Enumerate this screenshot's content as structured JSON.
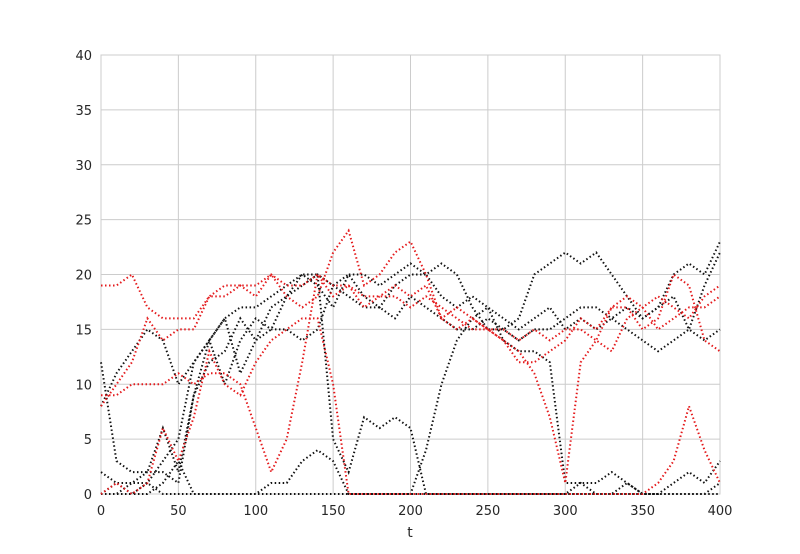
{
  "chart_data": {
    "type": "line",
    "title": "",
    "xlabel": "t",
    "ylabel": "",
    "xlim": [
      0,
      400
    ],
    "ylim": [
      0,
      40
    ],
    "xticks": [
      0,
      50,
      100,
      150,
      200,
      250,
      300,
      350,
      400
    ],
    "yticks": [
      0,
      5,
      10,
      15,
      20,
      25,
      30,
      35,
      40
    ],
    "grid": true,
    "line_style": "dotted",
    "colors": {
      "black_series": "#111111",
      "red_series": "#e41a1c",
      "grid": "#cccccc",
      "axis_frame": "#cccccc"
    },
    "series": [
      {
        "color": "#111111",
        "x": [
          0,
          10,
          20,
          30,
          40,
          50,
          60,
          70,
          80,
          90,
          100,
          110,
          120,
          130,
          140,
          150,
          160,
          170,
          180,
          190,
          200,
          210,
          220,
          230,
          240,
          250,
          260,
          270,
          280,
          290,
          300,
          310,
          320,
          330,
          340,
          350,
          360,
          370,
          380,
          390,
          400
        ],
        "y": [
          12,
          3,
          2,
          2,
          6,
          2,
          9,
          14,
          16,
          11,
          14,
          15,
          18,
          20,
          19,
          17,
          20,
          20,
          19,
          20,
          21,
          20,
          18,
          17,
          18,
          17,
          16,
          15,
          16,
          17,
          15,
          16,
          15,
          16,
          17,
          16,
          17,
          18,
          15,
          19,
          22
        ]
      },
      {
        "color": "#111111",
        "x": [
          0,
          10,
          20,
          30,
          40,
          50,
          60,
          70,
          80,
          90,
          100,
          110,
          120,
          130,
          140,
          150,
          160,
          170,
          180,
          190,
          200,
          210,
          220,
          230,
          240,
          250,
          260,
          270,
          280,
          290,
          300,
          310,
          320,
          330,
          340,
          350,
          360,
          370,
          380,
          390,
          400
        ],
        "y": [
          2,
          1,
          1,
          2,
          2,
          1,
          9,
          12,
          13,
          16,
          14,
          17,
          18,
          19,
          20,
          19,
          20,
          18,
          17,
          19,
          20,
          20,
          21,
          20,
          17,
          15,
          15,
          16,
          20,
          21,
          22,
          21,
          22,
          20,
          18,
          16,
          17,
          20,
          21,
          20,
          23
        ]
      },
      {
        "color": "#111111",
        "x": [
          0,
          10,
          20,
          30,
          40,
          50,
          60,
          70,
          80,
          90,
          100,
          110,
          120,
          130,
          140,
          150,
          160,
          170,
          180,
          190,
          200,
          210,
          220,
          230,
          240,
          250,
          260,
          270,
          280,
          290,
          300,
          310,
          320,
          330,
          340,
          350,
          360,
          370,
          380,
          390,
          400
        ],
        "y": [
          8,
          11,
          13,
          15,
          14,
          10,
          12,
          14,
          10,
          14,
          16,
          15,
          15,
          14,
          15,
          19,
          18,
          17,
          17,
          16,
          18,
          17,
          16,
          15,
          15,
          16,
          15,
          14,
          15,
          15,
          16,
          17,
          17,
          16,
          15,
          14,
          13,
          14,
          15,
          14,
          15
        ]
      },
      {
        "color": "#111111",
        "x": [
          0,
          10,
          20,
          30,
          40,
          50,
          60,
          70,
          80,
          90,
          100,
          110,
          120,
          130,
          140,
          150,
          160,
          170,
          180,
          190,
          200,
          210,
          220,
          230,
          240,
          250,
          260,
          270,
          280,
          290,
          300,
          310,
          320,
          330,
          340,
          350,
          360,
          370,
          380,
          390,
          400
        ],
        "y": [
          0,
          0,
          0,
          1,
          3,
          5,
          12,
          14,
          16,
          17,
          17,
          18,
          19,
          20,
          20,
          5,
          2,
          7,
          6,
          7,
          6,
          0,
          0,
          0,
          0,
          0,
          0,
          0,
          0,
          0,
          0,
          0,
          0,
          0,
          0,
          0,
          0,
          0,
          0,
          0,
          1
        ]
      },
      {
        "color": "#111111",
        "x": [
          0,
          10,
          20,
          30,
          40,
          50,
          60,
          70,
          80,
          90,
          100,
          110,
          120,
          130,
          140,
          150,
          160,
          170,
          180,
          190,
          200,
          210,
          220,
          230,
          240,
          250,
          260,
          270,
          280,
          290,
          300,
          310,
          320,
          330,
          340,
          350,
          360,
          370,
          380,
          390,
          400
        ],
        "y": [
          0,
          1,
          0,
          0,
          1,
          3,
          0,
          0,
          0,
          0,
          0,
          1,
          1,
          3,
          4,
          3,
          0,
          0,
          0,
          0,
          0,
          0,
          0,
          0,
          0,
          0,
          0,
          0,
          0,
          0,
          0,
          1,
          0,
          0,
          1,
          0,
          0,
          1,
          2,
          1,
          3
        ]
      },
      {
        "color": "#111111",
        "x": [
          0,
          10,
          20,
          30,
          40,
          50,
          60,
          70,
          80,
          90,
          100,
          110,
          120,
          130,
          140,
          150,
          160,
          170,
          180,
          190,
          200,
          210,
          220,
          230,
          240,
          250,
          260,
          270,
          280,
          290,
          300,
          310,
          320,
          330,
          340,
          350,
          360,
          370,
          380,
          390,
          400
        ],
        "y": [
          0,
          0,
          1,
          1,
          0,
          0,
          0,
          0,
          0,
          0,
          0,
          0,
          0,
          0,
          0,
          0,
          0,
          0,
          0,
          0,
          0,
          4,
          10,
          14,
          16,
          17,
          14,
          13,
          13,
          12,
          1,
          1,
          1,
          2,
          1,
          0,
          0,
          0,
          0,
          0,
          0
        ]
      },
      {
        "color": "#e41a1c",
        "x": [
          0,
          10,
          20,
          30,
          40,
          50,
          60,
          70,
          80,
          90,
          100,
          110,
          120,
          130,
          140,
          150,
          160,
          170,
          180,
          190,
          200,
          210,
          220,
          230,
          240,
          250,
          260,
          270,
          280,
          290,
          300,
          310,
          320,
          330,
          340,
          350,
          360,
          370,
          380,
          390,
          400
        ],
        "y": [
          19,
          19,
          20,
          17,
          16,
          16,
          16,
          18,
          19,
          19,
          19,
          20,
          19,
          19,
          20,
          19,
          19,
          18,
          18,
          18,
          17,
          18,
          17,
          16,
          15,
          15,
          15,
          14,
          15,
          14,
          15,
          15,
          14,
          13,
          16,
          17,
          18,
          17,
          16,
          18,
          19
        ]
      },
      {
        "color": "#e41a1c",
        "x": [
          0,
          10,
          20,
          30,
          40,
          50,
          60,
          70,
          80,
          90,
          100,
          110,
          120,
          130,
          140,
          150,
          160,
          170,
          180,
          190,
          200,
          210,
          220,
          230,
          240,
          250,
          260,
          270,
          280,
          290,
          300,
          310,
          320,
          330,
          340,
          350,
          360,
          370,
          380,
          390,
          400
        ],
        "y": [
          8,
          10,
          12,
          16,
          14,
          15,
          15,
          18,
          18,
          19,
          18,
          20,
          18,
          17,
          18,
          22,
          24,
          19,
          20,
          22,
          23,
          20,
          16,
          17,
          16,
          15,
          14,
          12,
          12,
          13,
          14,
          16,
          15,
          17,
          18,
          17,
          15,
          16,
          17,
          17,
          18
        ]
      },
      {
        "color": "#e41a1c",
        "x": [
          0,
          10,
          20,
          30,
          40,
          50,
          60,
          70,
          80,
          90,
          100,
          110,
          120,
          130,
          140,
          150,
          160,
          170,
          180,
          190,
          200,
          210,
          220,
          230,
          240,
          250,
          260,
          270,
          280,
          290,
          300,
          310,
          320,
          330,
          340,
          350,
          360,
          370,
          380,
          390,
          400
        ],
        "y": [
          9,
          9,
          10,
          10,
          10,
          11,
          10,
          11,
          11,
          10,
          6,
          2,
          5,
          12,
          20,
          18,
          19,
          17,
          18,
          19,
          18,
          19,
          16,
          15,
          16,
          15,
          14,
          13,
          11,
          7,
          1,
          12,
          14,
          17,
          17,
          15,
          16,
          20,
          19,
          14,
          13
        ]
      },
      {
        "color": "#e41a1c",
        "x": [
          0,
          10,
          20,
          30,
          40,
          50,
          60,
          70,
          80,
          90,
          100,
          110,
          120,
          130,
          140,
          150,
          160,
          170,
          180,
          190,
          200,
          210,
          220,
          230,
          240,
          250,
          260,
          270,
          280,
          290,
          300,
          310,
          320,
          330,
          340,
          350,
          360,
          370,
          380,
          390,
          400
        ],
        "y": [
          0,
          1,
          0,
          1,
          6,
          3,
          7,
          13,
          10,
          9,
          12,
          14,
          15,
          16,
          16,
          10,
          0,
          0,
          0,
          0,
          0,
          0,
          0,
          0,
          0,
          0,
          0,
          0,
          0,
          0,
          0,
          0,
          0,
          0,
          0,
          0,
          1,
          3,
          8,
          4,
          1
        ]
      }
    ]
  }
}
